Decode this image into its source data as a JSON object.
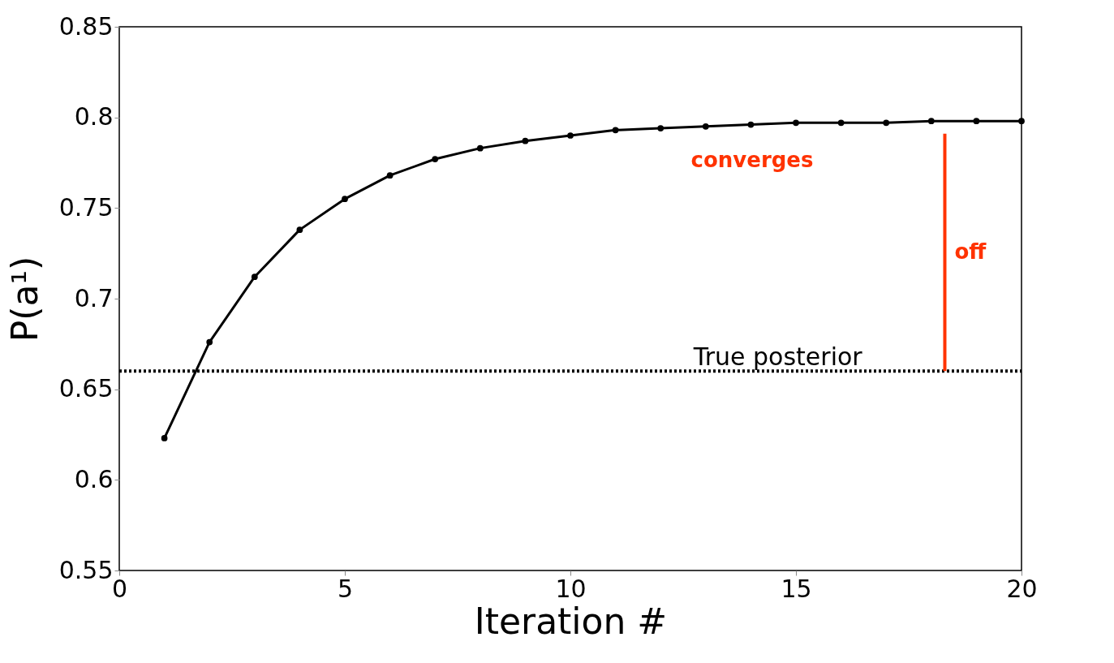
{
  "chart_data": {
    "type": "line",
    "xlabel": "Iteration #",
    "ylabel": "P(a¹)",
    "x": [
      1,
      2,
      3,
      4,
      5,
      6,
      7,
      8,
      9,
      10,
      11,
      12,
      13,
      14,
      15,
      16,
      17,
      18,
      19,
      20
    ],
    "series": [
      {
        "color": "#000000",
        "values": [
          0.623,
          0.676,
          0.712,
          0.738,
          0.755,
          0.768,
          0.777,
          0.783,
          0.787,
          0.79,
          0.793,
          0.794,
          0.795,
          0.796,
          0.797,
          0.797,
          0.797,
          0.798,
          0.798,
          0.798
        ]
      }
    ],
    "xlim": [
      0,
      20
    ],
    "xticks": [
      0,
      5,
      10,
      15,
      20
    ],
    "ylim": [
      0.55,
      0.85
    ],
    "yticks": [
      0.55,
      0.6,
      0.65,
      0.7,
      0.75,
      0.8,
      0.85
    ],
    "ref_lines": [
      {
        "axis": "y",
        "value": 0.66,
        "label": "True posterior",
        "color": "#000000",
        "line_style": "dotted"
      },
      {
        "axis": "x",
        "value": 18.3,
        "label": "off",
        "color": "#ff3300",
        "line_style": "solid"
      }
    ],
    "annotations": [
      "converges"
    ],
    "marker": "circle",
    "line_style": "solid",
    "grid": false
  }
}
